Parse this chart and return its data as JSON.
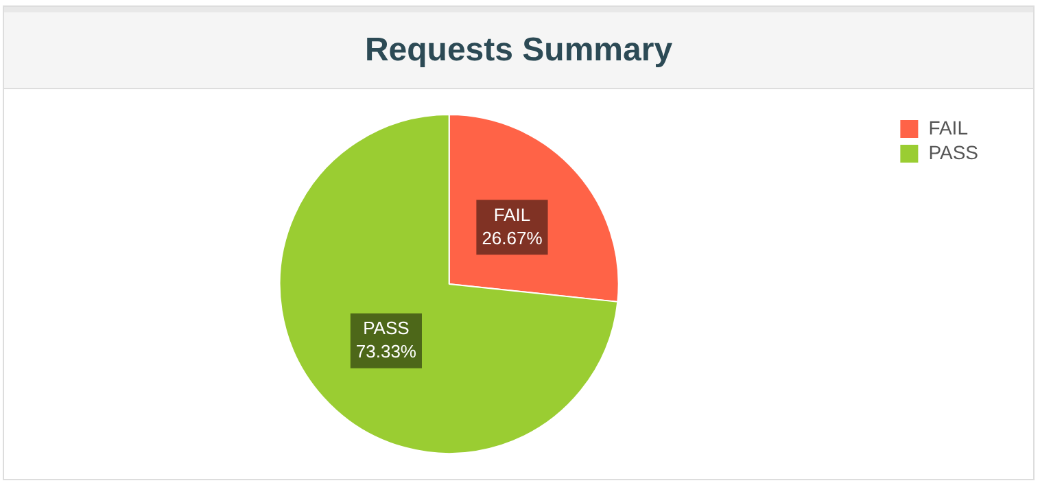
{
  "chart_data": {
    "type": "pie",
    "title": "Requests Summary",
    "categories": [
      "FAIL",
      "PASS"
    ],
    "values": [
      26.67,
      73.33
    ],
    "colors": [
      "#ff6347",
      "#9acd32"
    ],
    "value_labels": [
      "26.67%",
      "73.33%"
    ],
    "legend": "top right"
  }
}
